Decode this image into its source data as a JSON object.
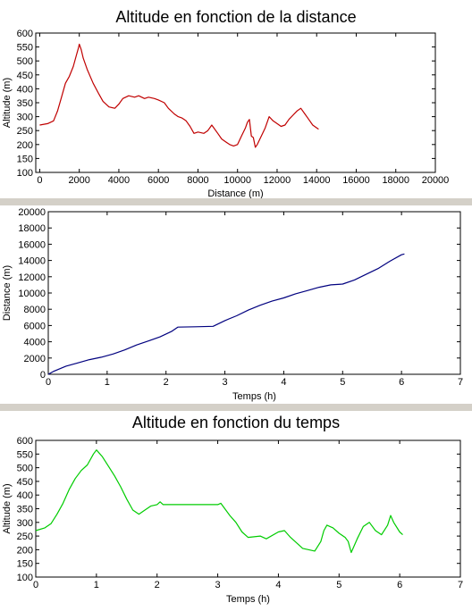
{
  "chart_data": [
    {
      "type": "line",
      "title": "Altitude en fonction de la distance",
      "xlabel": "Distance (m)",
      "ylabel": "Altitude (m)",
      "xlim": [
        -200,
        20000
      ],
      "ylim": [
        100,
        600
      ],
      "xticks": [
        0,
        2000,
        4000,
        6000,
        8000,
        10000,
        12000,
        14000,
        16000,
        18000,
        20000
      ],
      "yticks": [
        100,
        150,
        200,
        250,
        300,
        350,
        400,
        450,
        500,
        550,
        600
      ],
      "grid": false,
      "series": [
        {
          "color": "#c00000",
          "x": [
            0,
            400,
            700,
            900,
            1100,
            1300,
            1500,
            1700,
            1850,
            1950,
            2000,
            2100,
            2200,
            2400,
            2700,
            3000,
            3200,
            3500,
            3800,
            4000,
            4200,
            4500,
            4800,
            5000,
            5300,
            5500,
            5800,
            6000,
            6300,
            6500,
            6800,
            7000,
            7200,
            7400,
            7600,
            7800,
            8000,
            8300,
            8500,
            8700,
            9000,
            9200,
            9400,
            9600,
            9800,
            10000,
            10200,
            10400,
            10500,
            10600,
            10700,
            10800,
            10900,
            11000,
            11200,
            11400,
            11600,
            11800,
            12000,
            12200,
            12400,
            12600,
            12800,
            13000,
            13200,
            13400,
            13600,
            13800,
            14000,
            14100
          ],
          "y": [
            270,
            275,
            285,
            320,
            370,
            420,
            445,
            480,
            520,
            545,
            560,
            540,
            510,
            470,
            420,
            380,
            355,
            335,
            330,
            345,
            365,
            375,
            370,
            375,
            365,
            370,
            365,
            360,
            350,
            330,
            310,
            300,
            295,
            285,
            265,
            240,
            245,
            240,
            250,
            270,
            240,
            220,
            210,
            200,
            195,
            200,
            230,
            260,
            280,
            290,
            230,
            225,
            190,
            200,
            230,
            260,
            300,
            285,
            275,
            265,
            270,
            290,
            305,
            320,
            330,
            310,
            290,
            270,
            260,
            255
          ]
        }
      ]
    },
    {
      "type": "line",
      "title": "Distance en fonction du temps",
      "xlabel": "Temps (h)",
      "ylabel": "Distance (m)",
      "xlim": [
        0,
        7
      ],
      "ylim": [
        0,
        20000
      ],
      "xticks": [
        0,
        1,
        2,
        3,
        4,
        5,
        6,
        7
      ],
      "yticks": [
        0,
        2000,
        4000,
        6000,
        8000,
        10000,
        12000,
        14000,
        16000,
        18000,
        20000
      ],
      "grid": false,
      "series": [
        {
          "color": "#00007f",
          "x": [
            0,
            0.1,
            0.3,
            0.5,
            0.7,
            0.9,
            1.1,
            1.3,
            1.5,
            1.7,
            1.9,
            2.1,
            2.2,
            2.5,
            2.8,
            3.0,
            3.2,
            3.4,
            3.6,
            3.8,
            4.0,
            4.2,
            4.4,
            4.6,
            4.8,
            5.0,
            5.2,
            5.4,
            5.6,
            5.8,
            6.0,
            6.05
          ],
          "y": [
            0,
            400,
            1000,
            1400,
            1800,
            2100,
            2500,
            3000,
            3600,
            4100,
            4600,
            5300,
            5800,
            5850,
            5900,
            6600,
            7200,
            7900,
            8500,
            9000,
            9400,
            9900,
            10300,
            10700,
            11000,
            11100,
            11600,
            12300,
            13000,
            13900,
            14700,
            14800
          ]
        }
      ]
    },
    {
      "type": "line",
      "title": "Altitude en fonction du temps",
      "xlabel": "Temps (h)",
      "ylabel": "Altitude (m)",
      "xlim": [
        0,
        7
      ],
      "ylim": [
        100,
        600
      ],
      "xticks": [
        0,
        1,
        2,
        3,
        4,
        5,
        6,
        7
      ],
      "yticks": [
        100,
        150,
        200,
        250,
        300,
        350,
        400,
        450,
        500,
        550,
        600
      ],
      "grid": false,
      "series": [
        {
          "color": "#00cc00",
          "x": [
            0,
            0.15,
            0.25,
            0.35,
            0.45,
            0.55,
            0.65,
            0.75,
            0.85,
            0.95,
            1.0,
            1.1,
            1.2,
            1.3,
            1.4,
            1.5,
            1.6,
            1.7,
            1.8,
            1.9,
            2.0,
            2.05,
            2.1,
            2.2,
            2.4,
            2.6,
            2.8,
            3.0,
            3.05,
            3.1,
            3.2,
            3.3,
            3.4,
            3.5,
            3.7,
            3.8,
            4.0,
            4.1,
            4.2,
            4.4,
            4.5,
            4.6,
            4.7,
            4.75,
            4.8,
            4.9,
            5.0,
            5.1,
            5.15,
            5.2,
            5.3,
            5.4,
            5.5,
            5.6,
            5.7,
            5.8,
            5.85,
            5.9,
            6.0,
            6.05
          ],
          "y": [
            270,
            280,
            295,
            330,
            370,
            420,
            460,
            490,
            510,
            550,
            565,
            540,
            505,
            470,
            430,
            385,
            345,
            330,
            345,
            360,
            365,
            375,
            365,
            365,
            365,
            365,
            365,
            365,
            370,
            355,
            325,
            300,
            265,
            245,
            250,
            240,
            265,
            270,
            245,
            205,
            200,
            195,
            230,
            270,
            290,
            280,
            260,
            245,
            230,
            190,
            240,
            285,
            300,
            270,
            255,
            290,
            325,
            300,
            265,
            255
          ]
        }
      ]
    }
  ]
}
